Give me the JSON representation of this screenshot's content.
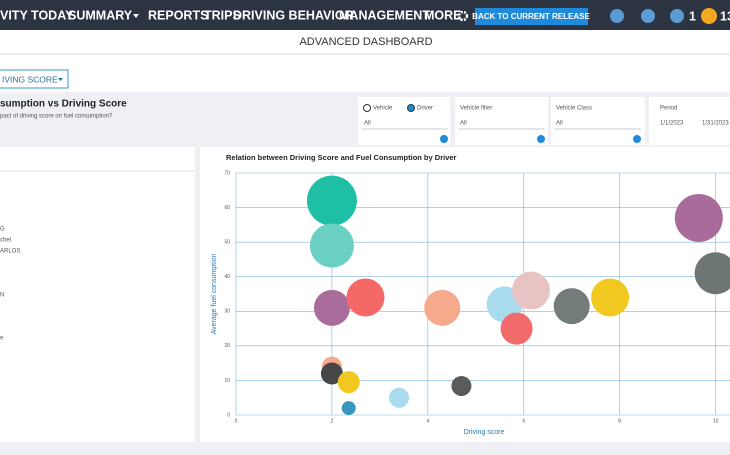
{
  "nav": {
    "items": [
      "VITY TODAY",
      "SUMMARY",
      "REPORTS",
      "TRIPS",
      "DRIVING BEHAVIOR",
      "MANAGEMENT",
      "MORE"
    ],
    "button": "BACK TO CURRENT RELEASE",
    "badges": [
      "1",
      "13"
    ]
  },
  "header": {
    "title": "ADVANCED DASHBOARD"
  },
  "selector": "IVING SCORE",
  "panel": {
    "title": "sumption vs Driving Score",
    "subtitle": "pact of driving score on fuel consumption?"
  },
  "filters": {
    "radio": [
      "Vehicle",
      "Driver"
    ],
    "driver_value": "All",
    "vehicle_filter": {
      "label": "Vehicle filter",
      "value": "All"
    },
    "vehicle_class": {
      "label": "Vehicle Class",
      "value": "All"
    },
    "period": {
      "label": "Period",
      "from": "1/1/2023",
      "to": "1/31/2023"
    }
  },
  "left_list": [
    "G",
    "chel",
    "ARLOS",
    "N",
    "e"
  ],
  "chart_data": {
    "type": "bubble",
    "title": "Relation between Driving Score and Fuel Consumption by Driver",
    "x_label": "Driving score",
    "y_label": "Average fuel consumption",
    "x": [
      2.0,
      2.0,
      2.0,
      2.7,
      4.3,
      5.6,
      6.15,
      5.85,
      7.0,
      7.8,
      9.65,
      10.0,
      2.0,
      2.0,
      2.35,
      3.4,
      4.7,
      2.35
    ],
    "values": [
      62,
      49,
      31,
      34,
      31,
      32,
      36,
      25,
      31.5,
      34,
      57,
      41,
      14,
      12,
      9.5,
      5,
      8.4,
      2
    ],
    "sizes": [
      25,
      22,
      18,
      19,
      18,
      18,
      19,
      16,
      18,
      19,
      24,
      21,
      10,
      11,
      11,
      10,
      10,
      7
    ],
    "colors": [
      "#1fbfa6",
      "#6ad0c3",
      "#a96c9b",
      "#f56868",
      "#f6a98b",
      "#a9dbee",
      "#e8c3c3",
      "#f26a6a",
      "#737b7b",
      "#f1c820",
      "#a86b9a",
      "#6d7575",
      "#f6a98b",
      "#474747",
      "#f1c820",
      "#a9dbee",
      "#5a5c5c",
      "#3a98c0"
    ],
    "xlim": [
      0,
      10.3
    ],
    "xticks": [
      0,
      2,
      4,
      6,
      8,
      10
    ],
    "ylim": [
      0,
      70
    ],
    "yticks": [
      0,
      10,
      20,
      30,
      40,
      50,
      60,
      70
    ],
    "grid": true
  }
}
